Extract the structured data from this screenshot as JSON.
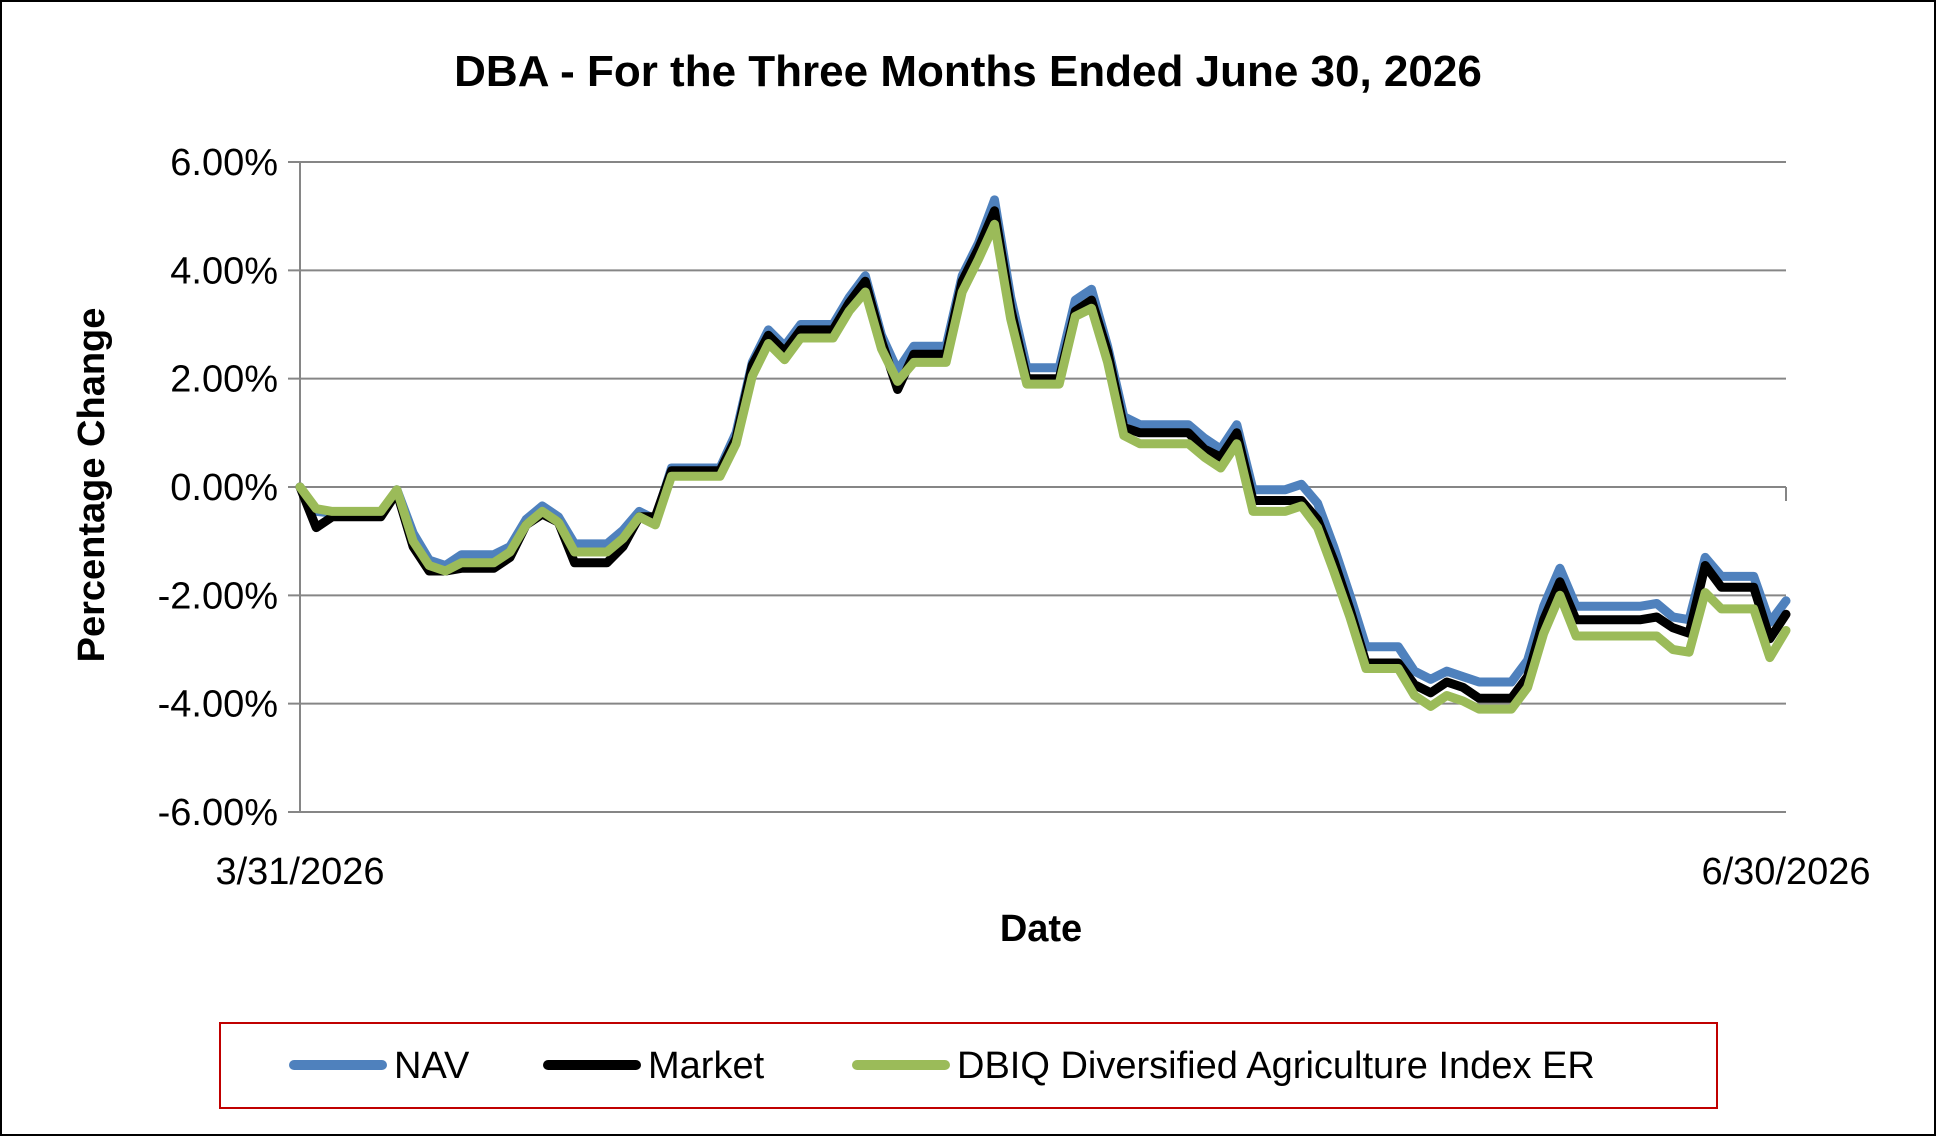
{
  "chart_data": {
    "type": "line",
    "title": "DBA - For the Three Months Ended June 30, 2026",
    "xlabel": "Date",
    "ylabel": "Percentage Change",
    "x_tick_labels": [
      "3/31/2026",
      "6/30/2026"
    ],
    "y_tick_labels": [
      "6.00%",
      "4.00%",
      "2.00%",
      "0.00%",
      "-2.00%",
      "-4.00%",
      "-6.00%"
    ],
    "ylim": [
      -6,
      6
    ],
    "y_ticks": [
      6,
      4,
      2,
      0,
      -2,
      -4,
      -6
    ],
    "grid": "horizontal",
    "legend_position": "bottom",
    "series": [
      {
        "name": "NAV",
        "color": "#4f81bd",
        "values": [
          0.0,
          -0.45,
          -0.48,
          -0.5,
          -0.5,
          -0.5,
          -0.05,
          -0.85,
          -1.35,
          -1.45,
          -1.25,
          -1.25,
          -1.25,
          -1.1,
          -0.6,
          -0.35,
          -0.55,
          -1.05,
          -1.05,
          -1.05,
          -0.8,
          -0.45,
          -0.6,
          0.35,
          0.35,
          0.35,
          0.35,
          1.0,
          2.3,
          2.9,
          2.6,
          3.0,
          3.0,
          3.0,
          3.5,
          3.9,
          2.8,
          2.15,
          2.6,
          2.6,
          2.6,
          3.9,
          4.5,
          5.3,
          3.5,
          2.2,
          2.2,
          2.2,
          3.45,
          3.65,
          2.6,
          1.3,
          1.15,
          1.15,
          1.15,
          1.15,
          0.9,
          0.7,
          1.15,
          -0.05,
          -0.05,
          -0.05,
          0.05,
          -0.3,
          -1.1,
          -2.0,
          -2.95,
          -2.95,
          -2.95,
          -3.4,
          -3.55,
          -3.4,
          -3.5,
          -3.6,
          -3.6,
          -3.6,
          -3.2,
          -2.2,
          -1.5,
          -2.2,
          -2.2,
          -2.2,
          -2.2,
          -2.2,
          -2.15,
          -2.4,
          -2.45,
          -1.3,
          -1.65,
          -1.65,
          -1.65,
          -2.5,
          -2.1
        ]
      },
      {
        "name": "Market",
        "color": "#000000",
        "values": [
          0.0,
          -0.75,
          -0.55,
          -0.55,
          -0.55,
          -0.55,
          -0.1,
          -1.1,
          -1.55,
          -1.55,
          -1.5,
          -1.5,
          -1.5,
          -1.3,
          -0.7,
          -0.5,
          -0.65,
          -1.4,
          -1.4,
          -1.4,
          -1.1,
          -0.55,
          -0.55,
          0.3,
          0.3,
          0.3,
          0.3,
          0.9,
          2.25,
          2.8,
          2.5,
          2.9,
          2.9,
          2.9,
          3.4,
          3.8,
          2.7,
          1.8,
          2.45,
          2.45,
          2.45,
          3.8,
          4.4,
          5.1,
          3.3,
          2.0,
          2.0,
          2.0,
          3.25,
          3.45,
          2.5,
          1.1,
          1.0,
          1.0,
          1.0,
          1.0,
          0.7,
          0.55,
          1.0,
          -0.25,
          -0.25,
          -0.25,
          -0.25,
          -0.6,
          -1.35,
          -2.25,
          -3.25,
          -3.25,
          -3.25,
          -3.65,
          -3.8,
          -3.6,
          -3.7,
          -3.9,
          -3.9,
          -3.9,
          -3.5,
          -2.45,
          -1.75,
          -2.45,
          -2.45,
          -2.45,
          -2.45,
          -2.45,
          -2.4,
          -2.6,
          -2.7,
          -1.45,
          -1.85,
          -1.85,
          -1.85,
          -2.8,
          -2.35
        ]
      },
      {
        "name": "DBIQ Diversified Agriculture Index ER",
        "color": "#9bbb59",
        "values": [
          0.0,
          -0.4,
          -0.45,
          -0.45,
          -0.45,
          -0.45,
          -0.05,
          -1.0,
          -1.45,
          -1.55,
          -1.4,
          -1.4,
          -1.4,
          -1.2,
          -0.7,
          -0.45,
          -0.65,
          -1.2,
          -1.2,
          -1.2,
          -0.95,
          -0.55,
          -0.7,
          0.2,
          0.2,
          0.2,
          0.2,
          0.8,
          2.05,
          2.65,
          2.35,
          2.75,
          2.75,
          2.75,
          3.25,
          3.6,
          2.55,
          1.95,
          2.3,
          2.3,
          2.3,
          3.6,
          4.2,
          4.85,
          3.1,
          1.9,
          1.9,
          1.9,
          3.15,
          3.3,
          2.3,
          0.95,
          0.8,
          0.8,
          0.8,
          0.8,
          0.55,
          0.35,
          0.8,
          -0.45,
          -0.45,
          -0.45,
          -0.35,
          -0.75,
          -1.55,
          -2.4,
          -3.35,
          -3.35,
          -3.35,
          -3.85,
          -4.05,
          -3.85,
          -3.95,
          -4.1,
          -4.1,
          -4.1,
          -3.7,
          -2.7,
          -2.0,
          -2.75,
          -2.75,
          -2.75,
          -2.75,
          -2.75,
          -2.75,
          -3.0,
          -3.05,
          -1.95,
          -2.25,
          -2.25,
          -2.25,
          -3.15,
          -2.65
        ]
      }
    ]
  }
}
